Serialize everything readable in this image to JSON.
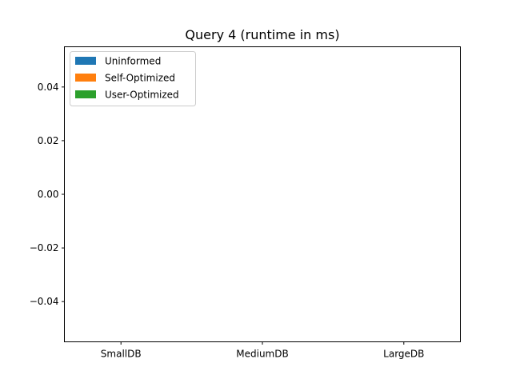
{
  "chart_data": {
    "type": "bar",
    "title": "Query 4 (runtime in ms)",
    "xlabel": "",
    "ylabel": "",
    "categories": [
      "SmallDB",
      "MediumDB",
      "LargeDB"
    ],
    "series": [
      {
        "name": "Uninformed",
        "color": "#1f77b4",
        "values": [
          0,
          0,
          0
        ]
      },
      {
        "name": "Self-Optimized",
        "color": "#ff7f0e",
        "values": [
          0,
          0,
          0
        ]
      },
      {
        "name": "User-Optimized",
        "color": "#2ca02c",
        "values": [
          0,
          0,
          0
        ]
      }
    ],
    "ylim": [
      -0.055,
      0.055
    ],
    "yticks": [
      0.04,
      0.02,
      0.0,
      -0.02,
      -0.04
    ],
    "ytick_labels": [
      "0.04",
      "0.02",
      "0.00",
      "−0.02",
      "−0.04"
    ],
    "grid": false,
    "legend_position": "top-left"
  }
}
